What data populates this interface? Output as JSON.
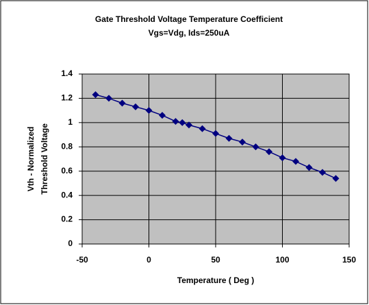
{
  "chart_data": {
    "type": "line",
    "title": "Gate Threshold Voltage Temperature Coefficient",
    "subtitle": "Vgs=Vdg, Ids=250uA",
    "y_label": [
      "Vth - Normalized",
      "Threshold Voltage"
    ],
    "x_label": "Temperature ( Deg )",
    "x": [
      -40,
      -30,
      -20,
      -10,
      0,
      10,
      20,
      25,
      30,
      40,
      50,
      60,
      70,
      80,
      90,
      100,
      110,
      120,
      130,
      140
    ],
    "series": [
      {
        "name": "Vth",
        "color": "#000080",
        "values": [
          1.23,
          1.2,
          1.16,
          1.13,
          1.1,
          1.06,
          1.01,
          1.0,
          0.98,
          0.95,
          0.91,
          0.87,
          0.84,
          0.8,
          0.76,
          0.71,
          0.68,
          0.63,
          0.59,
          0.54
        ]
      }
    ],
    "xlim": [
      -50,
      150
    ],
    "xticks": [
      -50,
      0,
      50,
      100,
      150
    ],
    "ylim": [
      0,
      1.4
    ],
    "yticks": [
      0,
      0.2,
      0.4,
      0.6,
      0.8,
      1,
      1.2,
      1.4
    ],
    "grid": true,
    "plot_background": "#c0c0c0"
  }
}
